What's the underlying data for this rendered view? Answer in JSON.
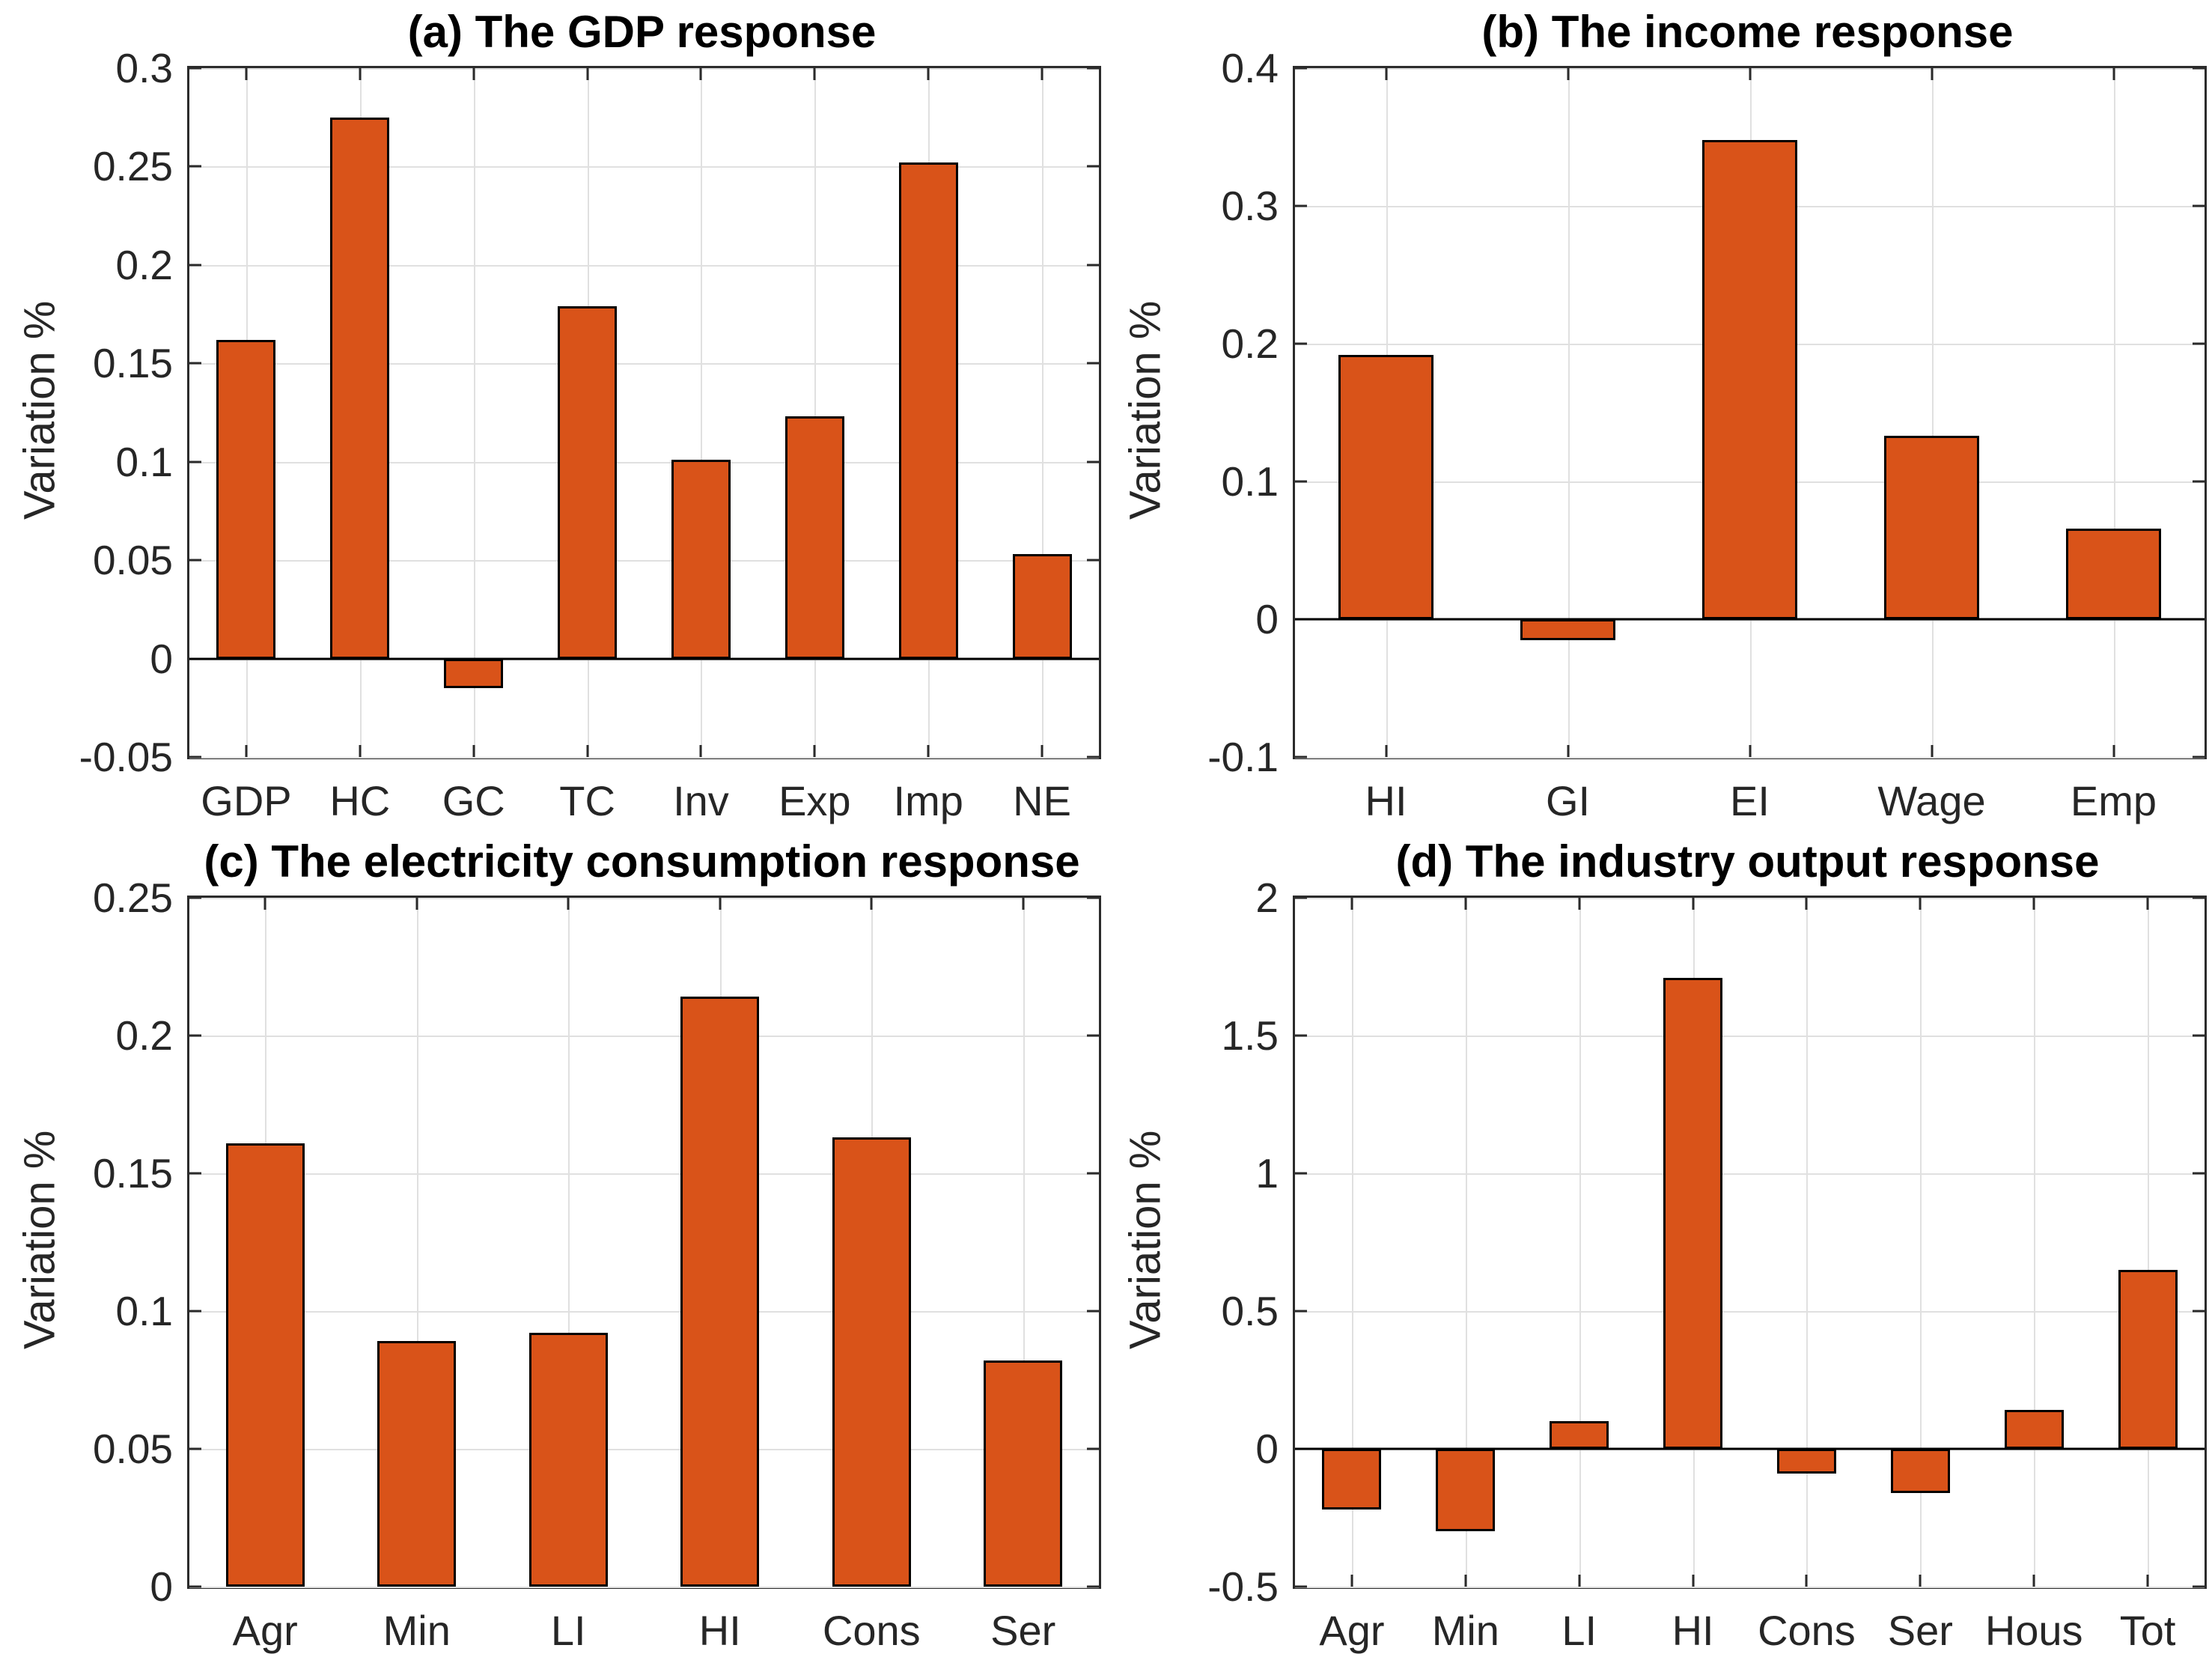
{
  "figure": {
    "background": "#ffffff",
    "bar_color": "#D95319",
    "bar_edge_color": "#000000",
    "grid_color": "#e0e0e0",
    "axis_color": "#2b2b2b",
    "grid": true,
    "legend": "none"
  },
  "chart_data": [
    {
      "type": "bar",
      "title": "(a) The GDP response",
      "ylabel": "Variation %",
      "xlabel": "",
      "categories": [
        "GDP",
        "HC",
        "GC",
        "TC",
        "Inv",
        "Exp",
        "Imp",
        "NE"
      ],
      "values": [
        0.162,
        0.275,
        -0.015,
        0.179,
        0.101,
        0.123,
        0.252,
        0.053
      ],
      "ylim": [
        -0.05,
        0.3
      ],
      "yticks": [
        -0.05,
        0,
        0.05,
        0.1,
        0.15,
        0.2,
        0.25,
        0.3
      ],
      "ytick_labels": [
        "-0.05",
        "0",
        "0.05",
        "0.1",
        "0.15",
        "0.2",
        "0.25",
        "0.3"
      ],
      "grid": true,
      "legend_position": "none"
    },
    {
      "type": "bar",
      "title": "(b) The income response",
      "ylabel": "Variation %",
      "xlabel": "",
      "categories": [
        "HI",
        "GI",
        "EI",
        "Wage",
        "Emp"
      ],
      "values": [
        0.192,
        -0.015,
        0.348,
        0.133,
        0.066
      ],
      "ylim": [
        -0.1,
        0.4
      ],
      "yticks": [
        -0.1,
        0,
        0.1,
        0.2,
        0.3,
        0.4
      ],
      "ytick_labels": [
        "-0.1",
        "0",
        "0.1",
        "0.2",
        "0.3",
        "0.4"
      ],
      "grid": true,
      "legend_position": "none"
    },
    {
      "type": "bar",
      "title": "(c) The electricity consumption response",
      "ylabel": "Variation %",
      "xlabel": "",
      "categories": [
        "Agr",
        "Min",
        "LI",
        "HI",
        "Cons",
        "Ser"
      ],
      "values": [
        0.161,
        0.089,
        0.092,
        0.214,
        0.163,
        0.082
      ],
      "ylim": [
        0,
        0.25
      ],
      "yticks": [
        0,
        0.05,
        0.1,
        0.15,
        0.2,
        0.25
      ],
      "ytick_labels": [
        "0",
        "0.05",
        "0.1",
        "0.15",
        "0.2",
        "0.25"
      ],
      "grid": true,
      "legend_position": "none"
    },
    {
      "type": "bar",
      "title": "(d) The industry output response",
      "ylabel": "Variation %",
      "xlabel": "",
      "categories": [
        "Agr",
        "Min",
        "LI",
        "HI",
        "Cons",
        "Ser",
        "Hous",
        "Tot"
      ],
      "values": [
        -0.22,
        -0.3,
        0.1,
        1.71,
        -0.09,
        -0.16,
        0.14,
        0.65
      ],
      "ylim": [
        -0.5,
        2
      ],
      "yticks": [
        -0.5,
        0,
        0.5,
        1,
        1.5,
        2
      ],
      "ytick_labels": [
        "-0.5",
        "0",
        "0.5",
        "1",
        "1.5",
        "2"
      ],
      "grid": true,
      "legend_position": "none"
    }
  ]
}
